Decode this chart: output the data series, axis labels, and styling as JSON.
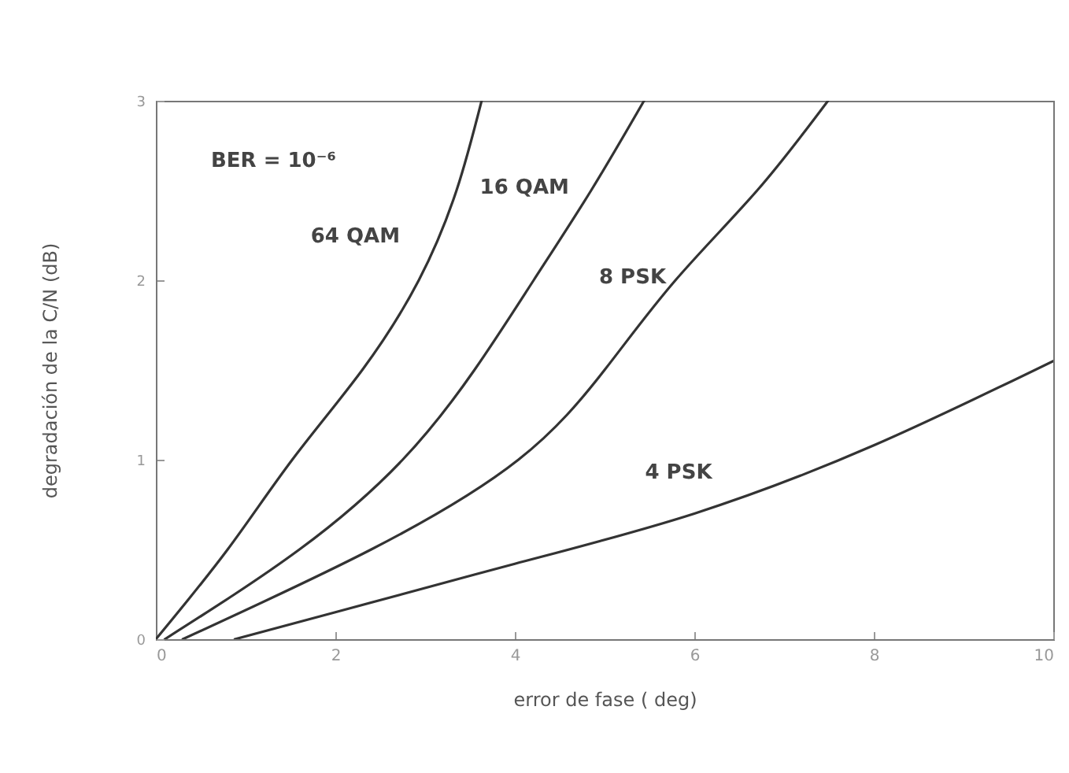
{
  "chart_data": {
    "type": "line",
    "xlabel": "error  de  fase   ( deg)",
    "ylabel": "degradación   de  la   C/N  (dB)",
    "xlim": [
      0,
      10
    ],
    "ylim": [
      0,
      3
    ],
    "xticks": [
      0,
      2,
      4,
      6,
      8,
      10
    ],
    "yticks": [
      0,
      1,
      2,
      3
    ],
    "line_style": "solid",
    "annotations": [
      "BER = 10⁻⁶"
    ],
    "series": [
      {
        "name": "64  QAM",
        "color": "#333333",
        "x": [
          0,
          0.8,
          1.52,
          2.3,
          2.93,
          3.35,
          3.63
        ],
        "values": [
          0,
          0.5,
          1,
          1.5,
          2,
          2.5,
          3
        ]
      },
      {
        "name": "16 QAM",
        "color": "#333333",
        "x": [
          0.1,
          1.6,
          2.75,
          3.55,
          4.21,
          4.85,
          5.44
        ],
        "values": [
          0,
          0.5,
          1,
          1.5,
          2,
          2.5,
          3
        ]
      },
      {
        "name": "8 PSK",
        "color": "#333333",
        "x": [
          0.3,
          2.4,
          4.04,
          5.0,
          5.79,
          6.7,
          7.49
        ],
        "values": [
          0,
          0.5,
          1,
          1.5,
          2,
          2.5,
          3
        ]
      },
      {
        "name": "4  PSK",
        "color": "#333333",
        "x": [
          0.88,
          2,
          4,
          6,
          8,
          10
        ],
        "values": [
          0,
          0.15,
          0.42,
          0.7,
          1.08,
          1.55
        ]
      }
    ]
  }
}
